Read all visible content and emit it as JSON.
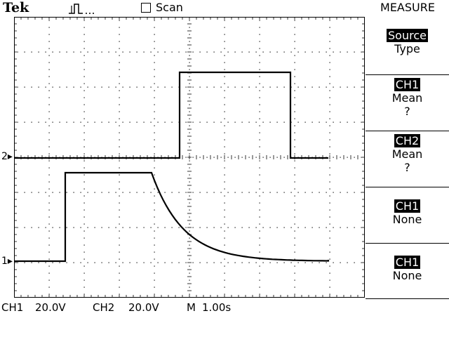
{
  "header": {
    "brand": "Tek",
    "trigger_icon": "pulse-trigger-icon",
    "scan_label": "Scan",
    "menu_title": "MEASURE"
  },
  "sidebar": {
    "items": [
      {
        "line1": "Source",
        "line2": "Type",
        "line3": ""
      },
      {
        "line1": "CH1",
        "line2": "Mean",
        "line3": "?"
      },
      {
        "line1": "CH2",
        "line2": "Mean",
        "line3": "?"
      },
      {
        "line1": "CH1",
        "line2": "None",
        "line3": ""
      },
      {
        "line1": "CH1",
        "line2": "None",
        "line3": ""
      }
    ]
  },
  "markers": {
    "ch2": "2",
    "ch1": "1"
  },
  "status": {
    "ch1_label": "CH1",
    "ch1_scale": "20.0V",
    "ch2_label": "CH2",
    "ch2_scale": "20.0V",
    "time_label": "M",
    "time_scale": "1.00s"
  },
  "colors": {
    "trace": "#000000",
    "background": "#ffffff",
    "grid": "#000000"
  }
}
